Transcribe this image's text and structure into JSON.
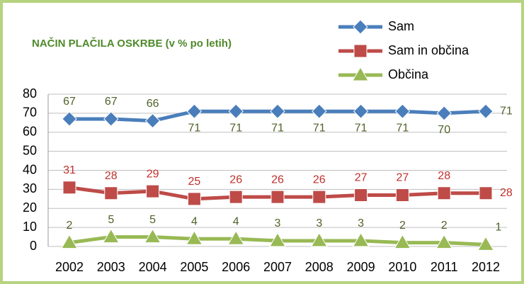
{
  "chart_data": {
    "type": "line",
    "title": "NAČIN PLAČILA OSKRBE  (v % po letih)",
    "categories": [
      "2002",
      "2003",
      "2004",
      "2005",
      "2006",
      "2007",
      "2008",
      "2009",
      "2010",
      "2011",
      "2012"
    ],
    "series": [
      {
        "name": "Sam",
        "color": "#4a7ebb",
        "marker": "diamond",
        "values": [
          67,
          67,
          66,
          71,
          71,
          71,
          71,
          71,
          71,
          70,
          71
        ]
      },
      {
        "name": "Sam in občina",
        "color": "#be4b48",
        "marker": "square",
        "values": [
          31,
          28,
          29,
          25,
          26,
          26,
          26,
          27,
          27,
          28,
          28
        ]
      },
      {
        "name": "Občina",
        "color": "#98b954",
        "marker": "triangle",
        "values": [
          2,
          5,
          5,
          4,
          4,
          3,
          3,
          3,
          2,
          2,
          1
        ]
      }
    ],
    "ylim": [
      0,
      80
    ],
    "yticks": [
      0,
      10,
      20,
      30,
      40,
      50,
      60,
      70,
      80
    ],
    "grid": true
  }
}
